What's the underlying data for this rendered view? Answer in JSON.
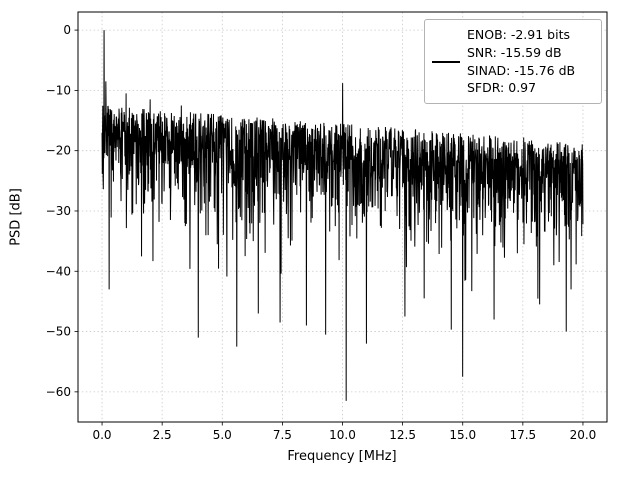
{
  "figure": {
    "background": "#ffffff"
  },
  "chart_data": {
    "type": "line",
    "title": "",
    "xlabel": "Frequency [MHz]",
    "ylabel": "PSD [dB]",
    "xlim": [
      -1,
      21
    ],
    "ylim": [
      -65,
      3
    ],
    "grid": true,
    "xticks": {
      "values": [
        0,
        2.5,
        5,
        7.5,
        10,
        12.5,
        15,
        17.5,
        20
      ],
      "labels": [
        "0.0",
        "2.5",
        "5.0",
        "7.5",
        "10.0",
        "12.5",
        "15.0",
        "17.5",
        "20.0"
      ]
    },
    "yticks": {
      "values": [
        0,
        -10,
        -20,
        -30,
        -40,
        -50,
        -60
      ],
      "labels": [
        "0",
        "−10",
        "−20",
        "−30",
        "−40",
        "−50",
        "−60"
      ]
    },
    "legend": {
      "position": "upper right",
      "entries": [
        "ENOB: -2.91 bits",
        "SNR: -15.59 dB",
        "SINAD: -15.76 dB",
        "SFDR: 0.97"
      ]
    },
    "stats": {
      "enob_bits": -2.91,
      "snr_db": -15.59,
      "sinad_db": -15.76,
      "sfdr": 0.97
    },
    "series": [
      {
        "name": "PSD",
        "color": "#000000",
        "line_width": 1,
        "generator": {
          "seed": 20,
          "n": 1900,
          "fmin": 0,
          "fmax": 20,
          "noise_top_start": -12.5,
          "noise_top_end": -18.5,
          "sigma": 8.0,
          "soft_floor": -44,
          "deep_dip_prob": 0.012,
          "deep_dip_extra": 11
        },
        "spikes": [
          {
            "x": 0.08,
            "y": 0.0
          },
          {
            "x": 0.16,
            "y": -8.5
          },
          {
            "x": 0.3,
            "y": -43.0
          },
          {
            "x": 1.0,
            "y": -10.5
          },
          {
            "x": 2.0,
            "y": -11.5
          },
          {
            "x": 3.3,
            "y": -12.5
          },
          {
            "x": 4.0,
            "y": -51.0
          },
          {
            "x": 5.6,
            "y": -52.5
          },
          {
            "x": 6.5,
            "y": -47.0
          },
          {
            "x": 7.4,
            "y": -48.5
          },
          {
            "x": 8.5,
            "y": -49.0
          },
          {
            "x": 9.3,
            "y": -50.5
          },
          {
            "x": 10.0,
            "y": -8.8
          },
          {
            "x": 10.15,
            "y": -61.5
          },
          {
            "x": 11.0,
            "y": -52.0
          },
          {
            "x": 12.6,
            "y": -47.5
          },
          {
            "x": 13.4,
            "y": -44.5
          },
          {
            "x": 15.0,
            "y": -57.5
          },
          {
            "x": 16.3,
            "y": -48.0
          },
          {
            "x": 18.2,
            "y": -45.5
          },
          {
            "x": 19.3,
            "y": -50.0
          }
        ]
      }
    ]
  }
}
